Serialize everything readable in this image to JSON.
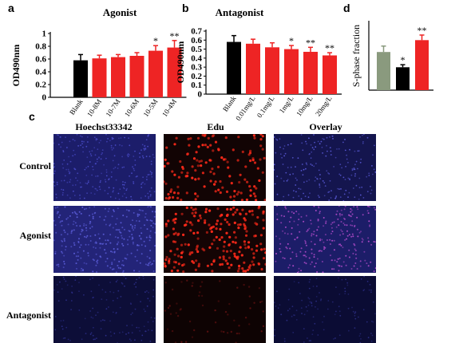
{
  "panels": {
    "a": "a",
    "b": "b",
    "c": "c",
    "d": "d"
  },
  "colors": {
    "blank": "#000000",
    "treat": "#ee2424",
    "green": "#8a9a7e",
    "blue_bg": "#1e1f6e",
    "red_bg": "#160606"
  },
  "chart_data": [
    {
      "id": "a",
      "type": "bar",
      "title": "Agonist",
      "ylabel": "OD490nm",
      "xlabel": "",
      "ylim": [
        0,
        1
      ],
      "yticks": [
        "0",
        "0.2",
        "0.4",
        "0.6",
        "0.8",
        "1"
      ],
      "categories": [
        "Blank",
        "10-8M",
        "10-7M",
        "10-6M",
        "10-5M",
        "10-4M"
      ],
      "values": [
        0.58,
        0.61,
        0.63,
        0.65,
        0.73,
        0.78
      ],
      "errors": [
        0.09,
        0.05,
        0.04,
        0.05,
        0.08,
        0.11
      ],
      "significance": [
        "",
        "",
        "",
        "",
        "*",
        "**"
      ],
      "bar_colors": [
        "#000000",
        "#ee2424",
        "#ee2424",
        "#ee2424",
        "#ee2424",
        "#ee2424"
      ]
    },
    {
      "id": "b",
      "type": "bar",
      "title": "Antagonist",
      "ylabel": "OD490nm",
      "xlabel": "",
      "ylim": [
        0,
        0.7
      ],
      "yticks": [
        "0",
        "0.1",
        "0.2",
        "0.3",
        "0.4",
        "0.5",
        "0.6",
        "0.7"
      ],
      "categories": [
        "Blank",
        "0.01mg/L",
        "0.1mg/L",
        "1mg/L",
        "10mg/L",
        "20mg/L"
      ],
      "values": [
        0.58,
        0.56,
        0.52,
        0.5,
        0.47,
        0.43
      ],
      "errors": [
        0.07,
        0.05,
        0.05,
        0.04,
        0.05,
        0.03
      ],
      "significance": [
        "",
        "",
        "",
        "*",
        "**",
        "**"
      ],
      "bar_colors": [
        "#000000",
        "#ee2424",
        "#ee2424",
        "#ee2424",
        "#ee2424",
        "#ee2424"
      ]
    },
    {
      "id": "d",
      "type": "bar",
      "title": "",
      "ylabel": "S-phase fraction",
      "xlabel": "",
      "ylim": [
        0,
        0.8
      ],
      "yticks": [],
      "categories": [
        "",
        "",
        ""
      ],
      "values": [
        0.45,
        0.27,
        0.59
      ],
      "errors": [
        0.07,
        0.03,
        0.06
      ],
      "significance": [
        "",
        "*",
        "**"
      ],
      "bar_colors": [
        "#8a9a7e",
        "#000000",
        "#ee2424"
      ]
    }
  ],
  "microscopy": {
    "columns": [
      "Hoechst33342",
      "Edu",
      "Overlay"
    ],
    "rows": [
      "Control",
      "Agonist",
      "Antagonist"
    ]
  }
}
